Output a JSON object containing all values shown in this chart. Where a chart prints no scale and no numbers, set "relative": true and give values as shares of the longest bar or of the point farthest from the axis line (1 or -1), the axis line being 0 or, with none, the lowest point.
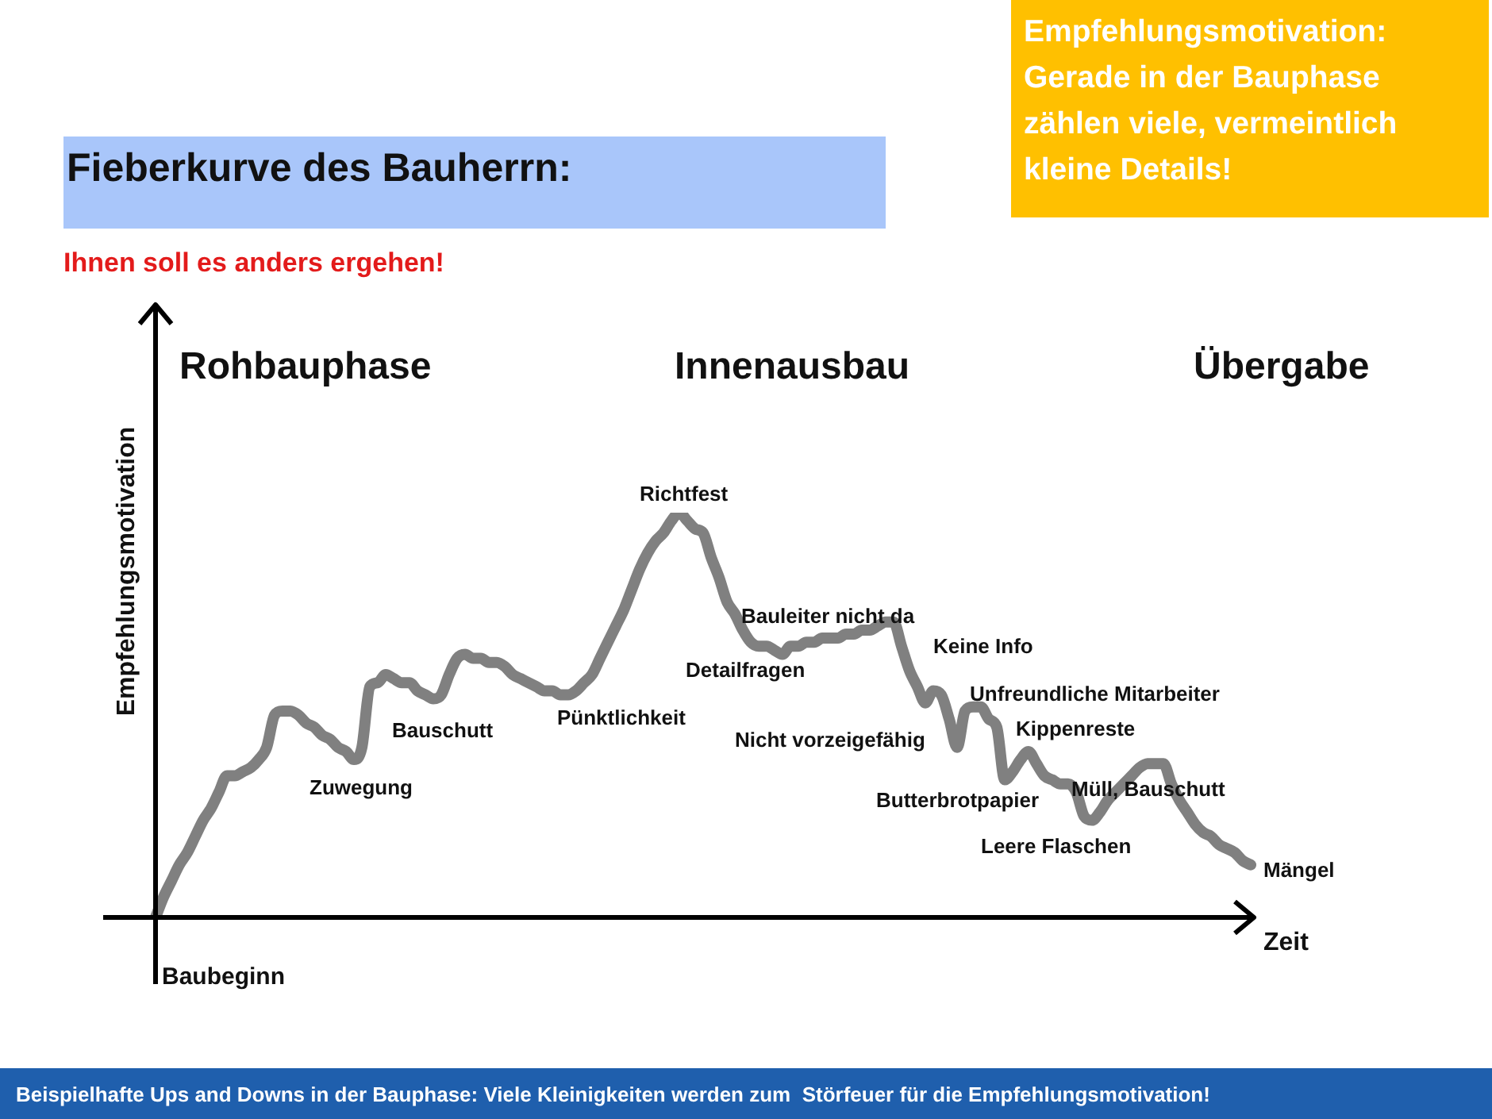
{
  "chart_data": {
    "type": "line",
    "relative": true,
    "title": "Fieberkurve des Bauherrn:",
    "subtitle": "Ihnen soll es anders ergehen!",
    "xlabel": "Zeit",
    "ylabel": "Empfehlungsmotivation",
    "legend": false,
    "annotations": [
      "Rohbauphase",
      "Innenausbau",
      "Übergabe",
      "Richtfest",
      "Zuwegung",
      "Bauschutt",
      "Pünktlichkeit",
      "Detailfragen",
      "Bauleiter nicht da",
      "Keine Info",
      "Unfreundliche Mitarbeiter",
      "Nicht vorzeigefähig",
      "Kippenreste",
      "Butterbrotpapier",
      "Müll, Bauschutt",
      "Leere Flaschen",
      "Mängel",
      "Baubeginn",
      "Empfehlungsmotivation: Gerade in der Bauphase zählen viele, vermeintlich kleine Details!",
      "Beispielhafte Ups and Downs in der Bauphase: Viele Kleinigkeiten werden zum  Störfeuer für die Empfehlungsmotivation!"
    ],
    "categories": [
      null,
      null,
      null,
      null,
      null,
      null,
      null,
      null,
      null,
      null,
      null,
      null,
      null,
      null,
      null,
      null,
      null,
      null,
      null,
      null,
      null,
      null,
      null,
      null,
      null,
      null,
      null,
      null,
      null,
      null,
      null,
      null,
      null,
      null,
      null,
      null,
      null,
      null,
      null,
      null,
      null,
      null,
      null,
      null,
      null,
      null,
      null,
      null,
      null,
      null,
      null,
      null,
      null,
      null,
      null,
      null,
      null,
      null,
      null,
      null,
      null,
      null,
      null,
      null,
      null,
      null,
      null,
      null,
      null,
      null,
      null,
      null,
      null,
      null,
      null,
      null,
      null,
      null,
      null,
      null,
      null,
      null,
      null,
      null,
      null,
      null,
      null,
      null,
      null,
      null,
      null,
      null,
      null,
      null,
      null,
      null,
      null,
      null,
      null,
      null,
      null,
      null,
      null,
      null,
      null,
      null,
      null,
      null,
      null,
      null,
      null,
      null,
      null,
      null,
      null,
      null,
      null,
      null,
      null,
      null,
      null,
      null,
      null,
      null,
      null,
      null,
      null,
      null,
      null,
      null,
      null,
      null,
      null,
      null,
      null,
      null,
      null,
      null,
      null
    ],
    "series": [
      {
        "color": "#808080",
        "values": [
          0.0,
          0.05,
          0.09,
          0.13,
          0.16,
          0.2,
          0.24,
          0.27,
          0.31,
          0.35,
          0.35,
          0.36,
          0.37,
          0.39,
          0.42,
          0.5,
          0.51,
          0.51,
          0.5,
          0.48,
          0.47,
          0.45,
          0.44,
          0.42,
          0.41,
          0.39,
          0.42,
          0.57,
          0.58,
          0.6,
          0.59,
          0.58,
          0.58,
          0.56,
          0.55,
          0.54,
          0.55,
          0.6,
          0.64,
          0.65,
          0.64,
          0.64,
          0.63,
          0.63,
          0.62,
          0.6,
          0.59,
          0.58,
          0.57,
          0.56,
          0.56,
          0.55,
          0.55,
          0.56,
          0.58,
          0.6,
          0.64,
          0.68,
          0.72,
          0.76,
          0.81,
          0.86,
          0.9,
          0.93,
          0.95,
          0.98,
          1.0,
          0.98,
          0.96,
          0.95,
          0.89,
          0.84,
          0.78,
          0.75,
          0.71,
          0.68,
          0.67,
          0.67,
          0.66,
          0.65,
          0.67,
          0.67,
          0.68,
          0.68,
          0.69,
          0.69,
          0.69,
          0.7,
          0.7,
          0.71,
          0.71,
          0.72,
          0.73,
          0.73,
          0.67,
          0.61,
          0.57,
          0.53,
          0.56,
          0.55,
          0.49,
          0.42,
          0.51,
          0.52,
          0.52,
          0.49,
          0.47,
          0.34,
          0.36,
          0.39,
          0.41,
          0.38,
          0.35,
          0.34,
          0.33,
          0.33,
          0.31,
          0.25,
          0.24,
          0.26,
          0.29,
          0.31,
          0.33,
          0.35,
          0.37,
          0.38,
          0.38,
          0.38,
          0.33,
          0.29,
          0.26,
          0.23,
          0.21,
          0.2,
          0.18,
          0.17,
          0.16,
          0.14,
          0.13
        ]
      }
    ]
  }
}
